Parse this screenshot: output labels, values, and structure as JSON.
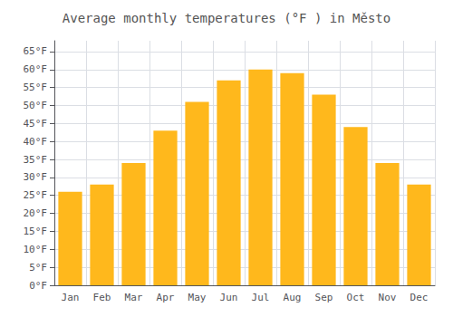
{
  "chart_data": {
    "type": "bar",
    "title": "Average monthly temperatures (°F ) in Město",
    "categories": [
      "Jan",
      "Feb",
      "Mar",
      "Apr",
      "May",
      "Jun",
      "Jul",
      "Aug",
      "Sep",
      "Oct",
      "Nov",
      "Dec"
    ],
    "values": [
      26,
      28,
      34,
      43,
      51,
      57,
      60,
      59,
      53,
      44,
      34,
      28
    ],
    "color": "#FFB81C",
    "ylim": [
      0,
      68
    ],
    "yticks": [
      {
        "value": 0,
        "label": "0°F"
      },
      {
        "value": 5,
        "label": "5°F"
      },
      {
        "value": 10,
        "label": "10°F"
      },
      {
        "value": 15,
        "label": "15°F"
      },
      {
        "value": 20,
        "label": "20°F"
      },
      {
        "value": 25,
        "label": "25°F"
      },
      {
        "value": 30,
        "label": "30°F"
      },
      {
        "value": 35,
        "label": "35°F"
      },
      {
        "value": 40,
        "label": "40°F"
      },
      {
        "value": 45,
        "label": "45°F"
      },
      {
        "value": 50,
        "label": "50°F"
      },
      {
        "value": 55,
        "label": "55°F"
      },
      {
        "value": 60,
        "label": "60°F"
      },
      {
        "value": 65,
        "label": "65°F"
      }
    ],
    "grid": true
  }
}
